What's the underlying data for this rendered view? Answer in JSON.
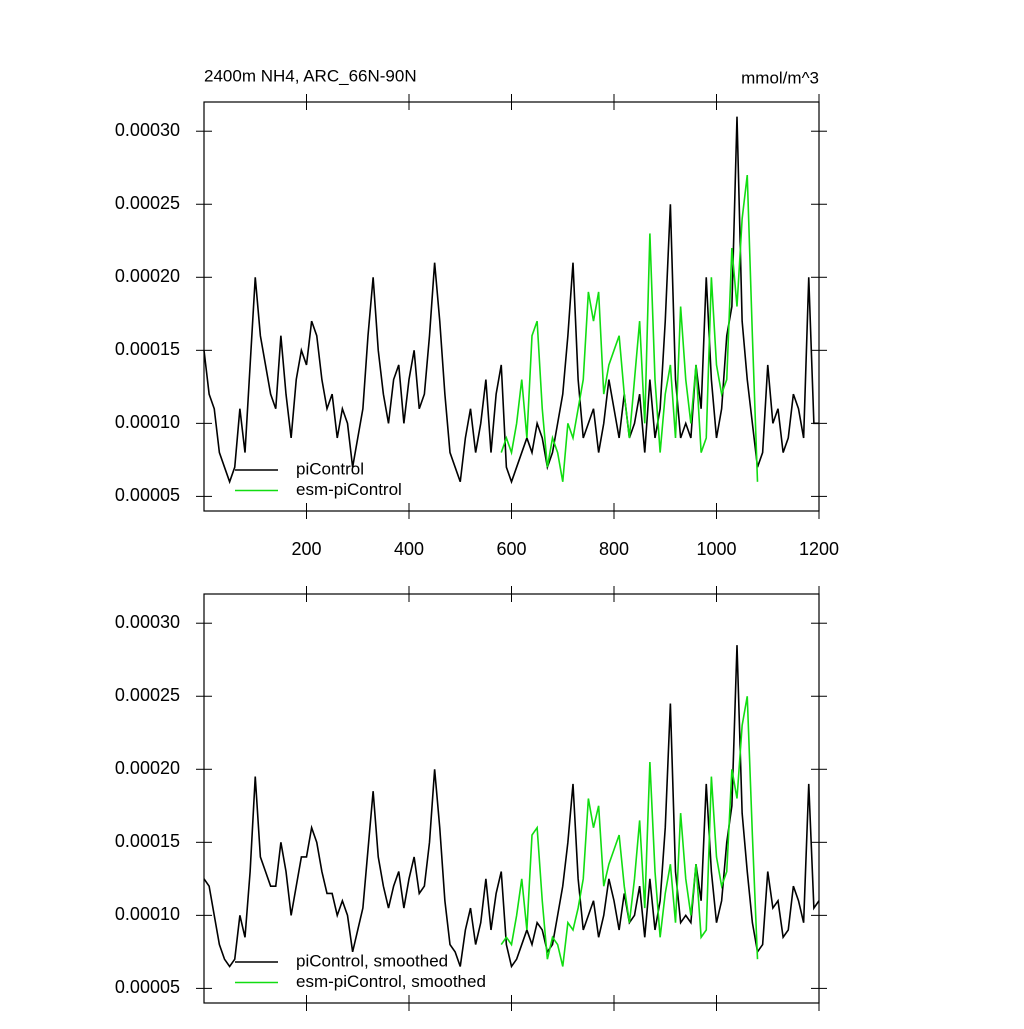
{
  "chart_data": [
    {
      "type": "line",
      "title": "2400m NH4, ARC_66N-90N",
      "units": "mmol/m^3",
      "xlim": [
        0,
        1200
      ],
      "xticks": [
        200,
        400,
        600,
        800,
        1000,
        1200
      ],
      "ylim": [
        4e-05,
        0.00032
      ],
      "yticks": [
        {
          "value": 5e-05,
          "label": "0.00005"
        },
        {
          "value": 0.0001,
          "label": "0.00010"
        },
        {
          "value": 0.00015,
          "label": "0.00015"
        },
        {
          "value": 0.0002,
          "label": "0.00020"
        },
        {
          "value": 0.00025,
          "label": "0.00025"
        },
        {
          "value": 0.0003,
          "label": "0.00030"
        }
      ],
      "series": [
        {
          "name": "piControl",
          "color": "#000000",
          "x": [
            0,
            10,
            20,
            30,
            40,
            50,
            60,
            70,
            80,
            90,
            100,
            110,
            120,
            130,
            140,
            150,
            160,
            170,
            180,
            190,
            200,
            210,
            220,
            230,
            240,
            250,
            260,
            270,
            280,
            290,
            300,
            310,
            320,
            330,
            340,
            350,
            360,
            370,
            380,
            390,
            400,
            410,
            420,
            430,
            440,
            450,
            460,
            470,
            480,
            490,
            500,
            510,
            520,
            530,
            540,
            550,
            560,
            570,
            580,
            590,
            600,
            610,
            620,
            630,
            640,
            650,
            660,
            670,
            680,
            690,
            700,
            710,
            720,
            730,
            740,
            750,
            760,
            770,
            780,
            790,
            800,
            810,
            820,
            830,
            840,
            850,
            860,
            870,
            880,
            890,
            900,
            910,
            920,
            930,
            940,
            950,
            960,
            970,
            980,
            990,
            1000,
            1010,
            1020,
            1030,
            1040,
            1050,
            1060,
            1070,
            1080,
            1090,
            1100,
            1110,
            1120,
            1130,
            1140,
            1150,
            1160,
            1170,
            1180,
            1190,
            1200
          ],
          "values": [
            0.00015,
            0.00012,
            0.00011,
            8e-05,
            7e-05,
            6e-05,
            7e-05,
            0.00011,
            8e-05,
            0.00014,
            0.0002,
            0.00016,
            0.00014,
            0.00012,
            0.00011,
            0.00016,
            0.00012,
            9e-05,
            0.00013,
            0.00015,
            0.00014,
            0.00017,
            0.00016,
            0.00013,
            0.00011,
            0.00012,
            9e-05,
            0.00011,
            0.0001,
            7e-05,
            9e-05,
            0.00011,
            0.00016,
            0.0002,
            0.00015,
            0.00012,
            0.0001,
            0.00013,
            0.00014,
            0.0001,
            0.00013,
            0.00015,
            0.00011,
            0.00012,
            0.00016,
            0.00021,
            0.00017,
            0.00012,
            8e-05,
            7e-05,
            6e-05,
            9e-05,
            0.00011,
            8e-05,
            0.0001,
            0.00013,
            8e-05,
            0.00012,
            0.00014,
            7e-05,
            6e-05,
            7e-05,
            8e-05,
            9e-05,
            8e-05,
            0.0001,
            9e-05,
            7e-05,
            8e-05,
            0.0001,
            0.00012,
            0.00016,
            0.00021,
            0.00013,
            9e-05,
            0.0001,
            0.00011,
            8e-05,
            0.0001,
            0.00013,
            0.00011,
            9e-05,
            0.00012,
            9e-05,
            0.0001,
            0.00012,
            8e-05,
            0.00013,
            9e-05,
            0.00011,
            0.00017,
            0.00025,
            0.00013,
            9e-05,
            0.0001,
            9e-05,
            0.00014,
            0.00011,
            0.0002,
            0.00013,
            9e-05,
            0.00011,
            0.00016,
            0.00018,
            0.00031,
            0.00017,
            0.00013,
            0.0001,
            7e-05,
            8e-05,
            0.00014,
            0.0001,
            0.00011,
            8e-05,
            9e-05,
            0.00012,
            0.00011,
            9e-05,
            0.0002,
            0.0001,
            0.0001
          ]
        },
        {
          "name": "esm-piControl",
          "color": "#11dd11",
          "x": [
            580,
            590,
            600,
            610,
            620,
            630,
            640,
            650,
            660,
            670,
            680,
            690,
            700,
            710,
            720,
            730,
            740,
            750,
            760,
            770,
            780,
            790,
            800,
            810,
            820,
            830,
            840,
            850,
            860,
            870,
            880,
            890,
            900,
            910,
            920,
            930,
            940,
            950,
            960,
            970,
            980,
            990,
            1000,
            1010,
            1020,
            1030,
            1040,
            1050,
            1060,
            1070,
            1080
          ],
          "values": [
            8e-05,
            9e-05,
            8e-05,
            0.0001,
            0.00013,
            9e-05,
            0.00016,
            0.00017,
            0.00011,
            7e-05,
            9e-05,
            8e-05,
            6e-05,
            0.0001,
            9e-05,
            0.00011,
            0.00013,
            0.00019,
            0.00017,
            0.00019,
            0.00012,
            0.00014,
            0.00015,
            0.00016,
            0.00012,
            9e-05,
            0.00013,
            0.00017,
            0.0001,
            0.00023,
            0.00013,
            8e-05,
            0.00012,
            0.00014,
            9e-05,
            0.00018,
            0.00013,
            0.0001,
            0.00014,
            8e-05,
            9e-05,
            0.0002,
            0.00014,
            0.00012,
            0.00013,
            0.00022,
            0.00018,
            0.00024,
            0.00027,
            0.00016,
            6e-05
          ]
        }
      ]
    },
    {
      "type": "line",
      "xlim": [
        0,
        1200
      ],
      "xticks": [
        200,
        400,
        600,
        800,
        1000,
        1200
      ],
      "ylim": [
        4e-05,
        0.00032
      ],
      "yticks": [
        {
          "value": 5e-05,
          "label": "0.00005"
        },
        {
          "value": 0.0001,
          "label": "0.00010"
        },
        {
          "value": 0.00015,
          "label": "0.00015"
        },
        {
          "value": 0.0002,
          "label": "0.00020"
        },
        {
          "value": 0.00025,
          "label": "0.00025"
        },
        {
          "value": 0.0003,
          "label": "0.00030"
        }
      ],
      "series": [
        {
          "name": "piControl, smoothed",
          "color": "#000000",
          "x": [
            0,
            10,
            20,
            30,
            40,
            50,
            60,
            70,
            80,
            90,
            100,
            110,
            120,
            130,
            140,
            150,
            160,
            170,
            180,
            190,
            200,
            210,
            220,
            230,
            240,
            250,
            260,
            270,
            280,
            290,
            300,
            310,
            320,
            330,
            340,
            350,
            360,
            370,
            380,
            390,
            400,
            410,
            420,
            430,
            440,
            450,
            460,
            470,
            480,
            490,
            500,
            510,
            520,
            530,
            540,
            550,
            560,
            570,
            580,
            590,
            600,
            610,
            620,
            630,
            640,
            650,
            660,
            670,
            680,
            690,
            700,
            710,
            720,
            730,
            740,
            750,
            760,
            770,
            780,
            790,
            800,
            810,
            820,
            830,
            840,
            850,
            860,
            870,
            880,
            890,
            900,
            910,
            920,
            930,
            940,
            950,
            960,
            970,
            980,
            990,
            1000,
            1010,
            1020,
            1030,
            1040,
            1050,
            1060,
            1070,
            1080,
            1090,
            1100,
            1110,
            1120,
            1130,
            1140,
            1150,
            1160,
            1170,
            1180,
            1190,
            1200
          ],
          "values": [
            0.000125,
            0.00012,
            0.0001,
            8e-05,
            7e-05,
            6.5e-05,
            7e-05,
            0.0001,
            8.5e-05,
            0.00013,
            0.000195,
            0.00014,
            0.00013,
            0.00012,
            0.00012,
            0.00015,
            0.00013,
            0.0001,
            0.00012,
            0.00014,
            0.00014,
            0.00016,
            0.00015,
            0.00013,
            0.000115,
            0.000115,
            0.0001,
            0.00011,
            0.0001,
            7.5e-05,
            9e-05,
            0.000105,
            0.000145,
            0.000185,
            0.00014,
            0.00012,
            0.000105,
            0.00012,
            0.00013,
            0.000105,
            0.000125,
            0.00014,
            0.000115,
            0.00012,
            0.00015,
            0.0002,
            0.00016,
            0.00011,
            8e-05,
            7.5e-05,
            6.5e-05,
            9e-05,
            0.000105,
            8e-05,
            9.5e-05,
            0.000125,
            9e-05,
            0.000115,
            0.00013,
            8e-05,
            6.5e-05,
            7e-05,
            8e-05,
            9e-05,
            8e-05,
            9.5e-05,
            9e-05,
            7.5e-05,
            8e-05,
            0.0001,
            0.00012,
            0.00015,
            0.00019,
            0.000125,
            9e-05,
            0.0001,
            0.00011,
            8.5e-05,
            0.0001,
            0.000125,
            0.00011,
            9e-05,
            0.000115,
            9.5e-05,
            0.0001,
            0.00012,
            8.5e-05,
            0.000125,
            9e-05,
            0.00011,
            0.00016,
            0.000245,
            0.00013,
            9.5e-05,
            0.0001,
            9.5e-05,
            0.000135,
            0.00011,
            0.00019,
            0.00013,
            9.5e-05,
            0.00011,
            0.00015,
            0.000175,
            0.000285,
            0.00017,
            0.00013,
            9.5e-05,
            7.5e-05,
            8e-05,
            0.00013,
            0.000105,
            0.00011,
            8.5e-05,
            9e-05,
            0.00012,
            0.00011,
            9.5e-05,
            0.00019,
            0.000105,
            0.00011
          ]
        },
        {
          "name": "esm-piControl, smoothed",
          "color": "#11dd11",
          "x": [
            580,
            590,
            600,
            610,
            620,
            630,
            640,
            650,
            660,
            670,
            680,
            690,
            700,
            710,
            720,
            730,
            740,
            750,
            760,
            770,
            780,
            790,
            800,
            810,
            820,
            830,
            840,
            850,
            860,
            870,
            880,
            890,
            900,
            910,
            920,
            930,
            940,
            950,
            960,
            970,
            980,
            990,
            1000,
            1010,
            1020,
            1030,
            1040,
            1050,
            1060,
            1070,
            1080
          ],
          "values": [
            8e-05,
            8.5e-05,
            8e-05,
            0.0001,
            0.000125,
            9e-05,
            0.000155,
            0.00016,
            0.00011,
            7e-05,
            8.5e-05,
            8e-05,
            6.5e-05,
            9.5e-05,
            9e-05,
            0.000105,
            0.000125,
            0.00018,
            0.00016,
            0.000175,
            0.00012,
            0.000135,
            0.000145,
            0.000155,
            0.00012,
            9.5e-05,
            0.000125,
            0.000165,
            0.000105,
            0.000205,
            0.00013,
            8.5e-05,
            0.000115,
            0.000135,
            9.5e-05,
            0.00017,
            0.000125,
            0.0001,
            0.000135,
            8.5e-05,
            9e-05,
            0.000195,
            0.00014,
            0.00012,
            0.00013,
            0.0002,
            0.00018,
            0.00023,
            0.00025,
            0.000155,
            7e-05
          ]
        }
      ]
    }
  ]
}
